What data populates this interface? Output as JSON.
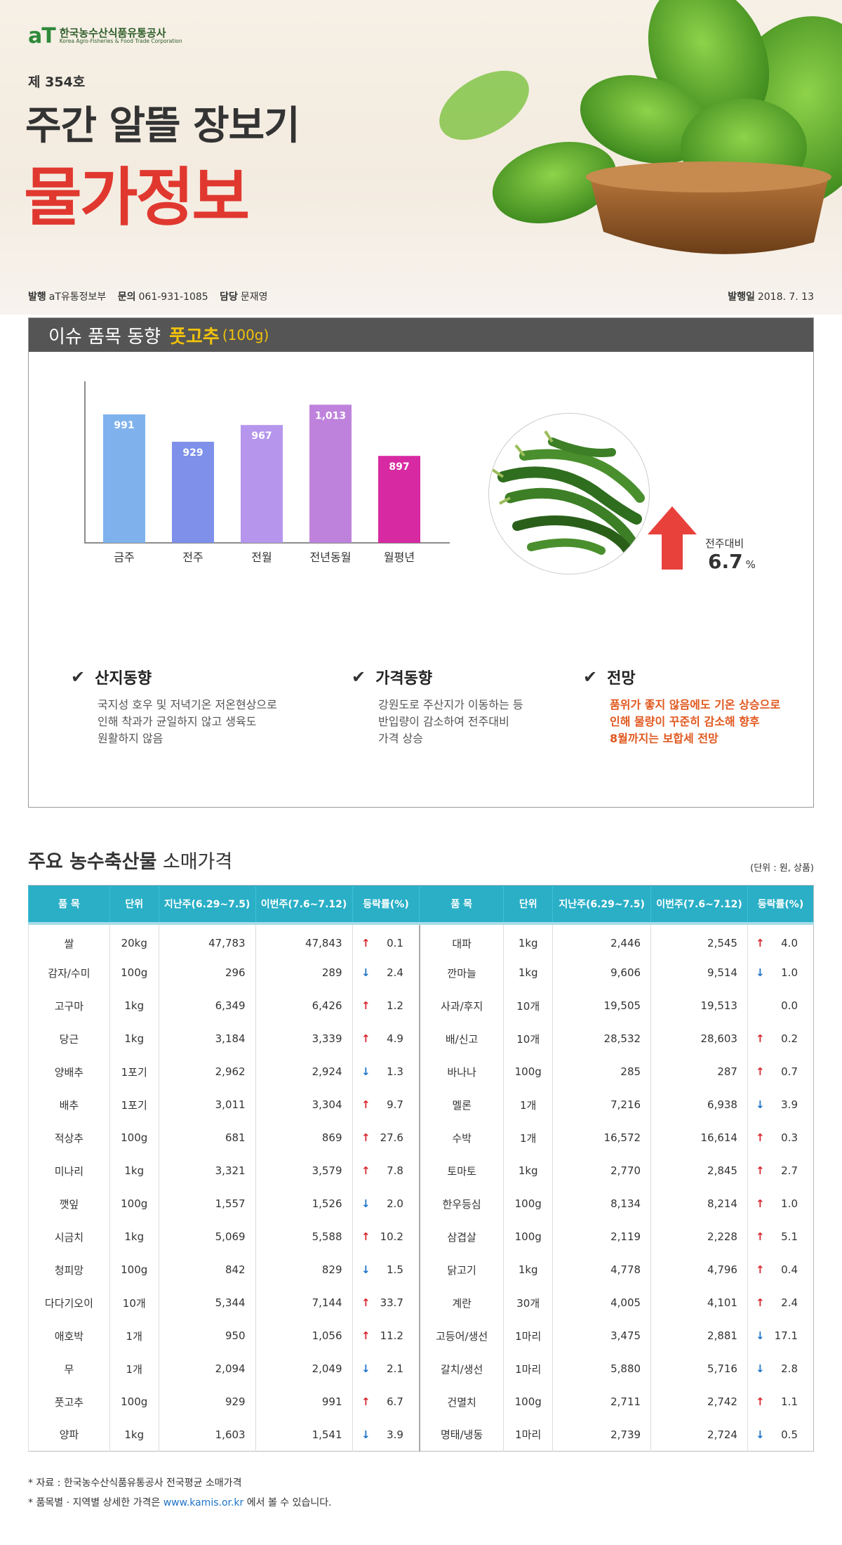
{
  "header": {
    "logo_mark": "aT",
    "logo_ko": "한국농수산식품유통공사",
    "logo_en": "Korea Agro-Fisheries & Food Trade Corporation",
    "issue_no": "제 354호",
    "title_line1": "주간 알뜰 장보기",
    "title_line2": "물가정보",
    "publisher_label": "발행",
    "publisher": "aT유통정보부",
    "contact_label": "문의",
    "contact": "061-931-1085",
    "manager_label": "담당",
    "manager": "문재영",
    "date_label": "발행일",
    "date": "2018. 7. 13"
  },
  "issue": {
    "heading": "이슈 품목 동향",
    "item": "풋고추",
    "unit": "(100g)",
    "wow_label": "전주대비",
    "wow_value": "6.7",
    "wow_unit": "%",
    "notes": [
      {
        "title": "산지동향",
        "lines": [
          "국지성 호우 및 저녁기온 저온현상으로",
          "인해 착과가 균일하지 않고 생육도",
          "원활하지 않음"
        ],
        "highlight": false
      },
      {
        "title": "가격동향",
        "lines": [
          "강원도로 주산지가 이동하는 등",
          "반입량이 감소하여 전주대비",
          "가격 상승"
        ],
        "highlight": false
      },
      {
        "title": "전망",
        "lines": [
          "품위가 좋지 않음에도 기온 상승으로",
          "인해 물량이 꾸준히 감소해 향후",
          "8월까지는 보합세 전망"
        ],
        "highlight": true
      }
    ]
  },
  "chart_data": {
    "type": "bar",
    "categories": [
      "금주",
      "전주",
      "전월",
      "전년동월",
      "월평년"
    ],
    "values": [
      991,
      929,
      967,
      1013,
      897
    ],
    "value_labels": [
      "991",
      "929",
      "967",
      "1,013",
      "897"
    ],
    "colors": [
      "#7fb2ec",
      "#7e90ea",
      "#b696ec",
      "#be82dc",
      "#d72aa2"
    ],
    "ylim": [
      700,
      1050
    ]
  },
  "prices": {
    "title_bold": "주요 농수축산물",
    "title_rest": "소매가격",
    "unit_note": "(단위 : 원, 상품)",
    "columns": [
      "품 목",
      "단위",
      "지난주(6.29~7.5)",
      "이번주(7.6~7.12)",
      "등락률(%)"
    ],
    "left": [
      {
        "item": "쌀",
        "unit": "20kg",
        "last": "47,783",
        "this": "47,843",
        "dir": "up",
        "rate": "0.1"
      },
      {
        "item": "감자/수미",
        "unit": "100g",
        "last": "296",
        "this": "289",
        "dir": "down",
        "rate": "2.4"
      },
      {
        "item": "고구마",
        "unit": "1kg",
        "last": "6,349",
        "this": "6,426",
        "dir": "up",
        "rate": "1.2"
      },
      {
        "item": "당근",
        "unit": "1kg",
        "last": "3,184",
        "this": "3,339",
        "dir": "up",
        "rate": "4.9"
      },
      {
        "item": "양배추",
        "unit": "1포기",
        "last": "2,962",
        "this": "2,924",
        "dir": "down",
        "rate": "1.3"
      },
      {
        "item": "배추",
        "unit": "1포기",
        "last": "3,011",
        "this": "3,304",
        "dir": "up",
        "rate": "9.7"
      },
      {
        "item": "적상추",
        "unit": "100g",
        "last": "681",
        "this": "869",
        "dir": "up",
        "rate": "27.6"
      },
      {
        "item": "미나리",
        "unit": "1kg",
        "last": "3,321",
        "this": "3,579",
        "dir": "up",
        "rate": "7.8"
      },
      {
        "item": "깻잎",
        "unit": "100g",
        "last": "1,557",
        "this": "1,526",
        "dir": "down",
        "rate": "2.0"
      },
      {
        "item": "시금치",
        "unit": "1kg",
        "last": "5,069",
        "this": "5,588",
        "dir": "up",
        "rate": "10.2"
      },
      {
        "item": "청피망",
        "unit": "100g",
        "last": "842",
        "this": "829",
        "dir": "down",
        "rate": "1.5"
      },
      {
        "item": "다다기오이",
        "unit": "10개",
        "last": "5,344",
        "this": "7,144",
        "dir": "up",
        "rate": "33.7"
      },
      {
        "item": "애호박",
        "unit": "1개",
        "last": "950",
        "this": "1,056",
        "dir": "up",
        "rate": "11.2"
      },
      {
        "item": "무",
        "unit": "1개",
        "last": "2,094",
        "this": "2,049",
        "dir": "down",
        "rate": "2.1"
      },
      {
        "item": "풋고추",
        "unit": "100g",
        "last": "929",
        "this": "991",
        "dir": "up",
        "rate": "6.7"
      },
      {
        "item": "양파",
        "unit": "1kg",
        "last": "1,603",
        "this": "1,541",
        "dir": "down",
        "rate": "3.9"
      }
    ],
    "right": [
      {
        "item": "대파",
        "unit": "1kg",
        "last": "2,446",
        "this": "2,545",
        "dir": "up",
        "rate": "4.0"
      },
      {
        "item": "깐마늘",
        "unit": "1kg",
        "last": "9,606",
        "this": "9,514",
        "dir": "down",
        "rate": "1.0"
      },
      {
        "item": "사과/후지",
        "unit": "10개",
        "last": "19,505",
        "this": "19,513",
        "dir": "none",
        "rate": "0.0"
      },
      {
        "item": "배/신고",
        "unit": "10개",
        "last": "28,532",
        "this": "28,603",
        "dir": "up",
        "rate": "0.2"
      },
      {
        "item": "바나나",
        "unit": "100g",
        "last": "285",
        "this": "287",
        "dir": "up",
        "rate": "0.7"
      },
      {
        "item": "멜론",
        "unit": "1개",
        "last": "7,216",
        "this": "6,938",
        "dir": "down",
        "rate": "3.9"
      },
      {
        "item": "수박",
        "unit": "1개",
        "last": "16,572",
        "this": "16,614",
        "dir": "up",
        "rate": "0.3"
      },
      {
        "item": "토마토",
        "unit": "1kg",
        "last": "2,770",
        "this": "2,845",
        "dir": "up",
        "rate": "2.7"
      },
      {
        "item": "한우등심",
        "unit": "100g",
        "last": "8,134",
        "this": "8,214",
        "dir": "up",
        "rate": "1.0"
      },
      {
        "item": "삼겹살",
        "unit": "100g",
        "last": "2,119",
        "this": "2,228",
        "dir": "up",
        "rate": "5.1"
      },
      {
        "item": "닭고기",
        "unit": "1kg",
        "last": "4,778",
        "this": "4,796",
        "dir": "up",
        "rate": "0.4"
      },
      {
        "item": "계란",
        "unit": "30개",
        "last": "4,005",
        "this": "4,101",
        "dir": "up",
        "rate": "2.4"
      },
      {
        "item": "고등어/생선",
        "unit": "1마리",
        "last": "3,475",
        "this": "2,881",
        "dir": "down",
        "rate": "17.1"
      },
      {
        "item": "갈치/생선",
        "unit": "1마리",
        "last": "5,880",
        "this": "5,716",
        "dir": "down",
        "rate": "2.8"
      },
      {
        "item": "건멸치",
        "unit": "100g",
        "last": "2,711",
        "this": "2,742",
        "dir": "up",
        "rate": "1.1"
      },
      {
        "item": "명태/냉동",
        "unit": "1마리",
        "last": "2,739",
        "this": "2,724",
        "dir": "down",
        "rate": "0.5"
      }
    ]
  },
  "footnotes": {
    "line1": "* 자료 : 한국농수산식품유통공사 전국평균 소매가격",
    "line2_pre": "* 품목별 · 지역별 상세한 가격은 ",
    "line2_link": "www.kamis.or.kr",
    "line2_post": " 에서 볼 수 있습니다."
  },
  "icons": {
    "up_arrow": "up-arrow-icon",
    "down_arrow": "down-arrow-icon",
    "check": "check-icon"
  }
}
